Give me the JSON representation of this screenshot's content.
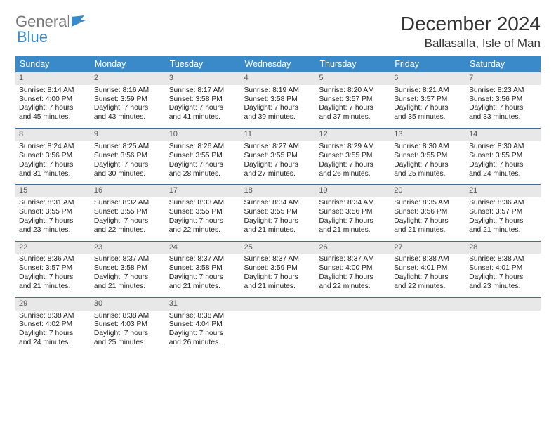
{
  "logo": {
    "word1": "General",
    "word2": "Blue"
  },
  "title": "December 2024",
  "location": "Ballasalla, Isle of Man",
  "colors": {
    "header_bg": "#3a8ac9",
    "header_text": "#ffffff",
    "row_divider": "#3a6ea5",
    "daynum_bg": "#e8e8e8",
    "daynum_text": "#555555",
    "body_text": "#222222",
    "page_bg": "#ffffff",
    "logo_gray": "#777777",
    "logo_blue": "#3a8ac9"
  },
  "typography": {
    "title_fontsize": 28,
    "location_fontsize": 17,
    "header_fontsize": 12.5,
    "cell_fontsize": 10.3,
    "daynum_fontsize": 11,
    "logo_fontsize": 22
  },
  "weekdays": [
    "Sunday",
    "Monday",
    "Tuesday",
    "Wednesday",
    "Thursday",
    "Friday",
    "Saturday"
  ],
  "weeks": [
    [
      {
        "n": "1",
        "sr": "8:14 AM",
        "ss": "4:00 PM",
        "dl": "7 hours and 45 minutes."
      },
      {
        "n": "2",
        "sr": "8:16 AM",
        "ss": "3:59 PM",
        "dl": "7 hours and 43 minutes."
      },
      {
        "n": "3",
        "sr": "8:17 AM",
        "ss": "3:58 PM",
        "dl": "7 hours and 41 minutes."
      },
      {
        "n": "4",
        "sr": "8:19 AM",
        "ss": "3:58 PM",
        "dl": "7 hours and 39 minutes."
      },
      {
        "n": "5",
        "sr": "8:20 AM",
        "ss": "3:57 PM",
        "dl": "7 hours and 37 minutes."
      },
      {
        "n": "6",
        "sr": "8:21 AM",
        "ss": "3:57 PM",
        "dl": "7 hours and 35 minutes."
      },
      {
        "n": "7",
        "sr": "8:23 AM",
        "ss": "3:56 PM",
        "dl": "7 hours and 33 minutes."
      }
    ],
    [
      {
        "n": "8",
        "sr": "8:24 AM",
        "ss": "3:56 PM",
        "dl": "7 hours and 31 minutes."
      },
      {
        "n": "9",
        "sr": "8:25 AM",
        "ss": "3:56 PM",
        "dl": "7 hours and 30 minutes."
      },
      {
        "n": "10",
        "sr": "8:26 AM",
        "ss": "3:55 PM",
        "dl": "7 hours and 28 minutes."
      },
      {
        "n": "11",
        "sr": "8:27 AM",
        "ss": "3:55 PM",
        "dl": "7 hours and 27 minutes."
      },
      {
        "n": "12",
        "sr": "8:29 AM",
        "ss": "3:55 PM",
        "dl": "7 hours and 26 minutes."
      },
      {
        "n": "13",
        "sr": "8:30 AM",
        "ss": "3:55 PM",
        "dl": "7 hours and 25 minutes."
      },
      {
        "n": "14",
        "sr": "8:30 AM",
        "ss": "3:55 PM",
        "dl": "7 hours and 24 minutes."
      }
    ],
    [
      {
        "n": "15",
        "sr": "8:31 AM",
        "ss": "3:55 PM",
        "dl": "7 hours and 23 minutes."
      },
      {
        "n": "16",
        "sr": "8:32 AM",
        "ss": "3:55 PM",
        "dl": "7 hours and 22 minutes."
      },
      {
        "n": "17",
        "sr": "8:33 AM",
        "ss": "3:55 PM",
        "dl": "7 hours and 22 minutes."
      },
      {
        "n": "18",
        "sr": "8:34 AM",
        "ss": "3:55 PM",
        "dl": "7 hours and 21 minutes."
      },
      {
        "n": "19",
        "sr": "8:34 AM",
        "ss": "3:56 PM",
        "dl": "7 hours and 21 minutes."
      },
      {
        "n": "20",
        "sr": "8:35 AM",
        "ss": "3:56 PM",
        "dl": "7 hours and 21 minutes."
      },
      {
        "n": "21",
        "sr": "8:36 AM",
        "ss": "3:57 PM",
        "dl": "7 hours and 21 minutes."
      }
    ],
    [
      {
        "n": "22",
        "sr": "8:36 AM",
        "ss": "3:57 PM",
        "dl": "7 hours and 21 minutes."
      },
      {
        "n": "23",
        "sr": "8:37 AM",
        "ss": "3:58 PM",
        "dl": "7 hours and 21 minutes."
      },
      {
        "n": "24",
        "sr": "8:37 AM",
        "ss": "3:58 PM",
        "dl": "7 hours and 21 minutes."
      },
      {
        "n": "25",
        "sr": "8:37 AM",
        "ss": "3:59 PM",
        "dl": "7 hours and 21 minutes."
      },
      {
        "n": "26",
        "sr": "8:37 AM",
        "ss": "4:00 PM",
        "dl": "7 hours and 22 minutes."
      },
      {
        "n": "27",
        "sr": "8:38 AM",
        "ss": "4:01 PM",
        "dl": "7 hours and 22 minutes."
      },
      {
        "n": "28",
        "sr": "8:38 AM",
        "ss": "4:01 PM",
        "dl": "7 hours and 23 minutes."
      }
    ],
    [
      {
        "n": "29",
        "sr": "8:38 AM",
        "ss": "4:02 PM",
        "dl": "7 hours and 24 minutes."
      },
      {
        "n": "30",
        "sr": "8:38 AM",
        "ss": "4:03 PM",
        "dl": "7 hours and 25 minutes."
      },
      {
        "n": "31",
        "sr": "8:38 AM",
        "ss": "4:04 PM",
        "dl": "7 hours and 26 minutes."
      },
      null,
      null,
      null,
      null
    ]
  ],
  "labels": {
    "sunrise": "Sunrise:",
    "sunset": "Sunset:",
    "daylight": "Daylight:"
  }
}
